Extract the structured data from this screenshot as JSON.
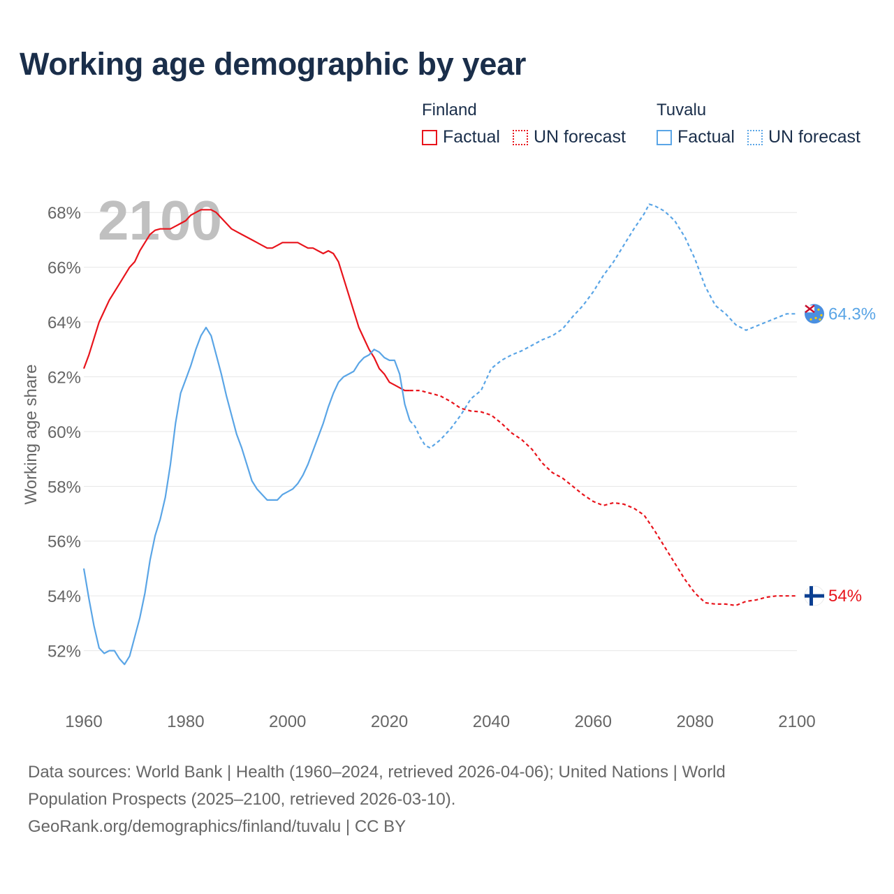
{
  "chart_data": {
    "type": "line",
    "title": "Working age demographic by year",
    "xlabel": "",
    "ylabel": "Working age share",
    "xlim": [
      1960,
      2100
    ],
    "ylim": [
      50,
      69
    ],
    "yticks": [
      52,
      54,
      56,
      58,
      60,
      62,
      64,
      66,
      68
    ],
    "ytick_labels": [
      "52%",
      "54%",
      "56%",
      "58%",
      "60%",
      "62%",
      "64%",
      "66%",
      "68%"
    ],
    "xticks": [
      1960,
      1980,
      2000,
      2020,
      2040,
      2060,
      2080,
      2100
    ],
    "xtick_labels": [
      "1960",
      "1980",
      "2000",
      "2020",
      "2040",
      "2060",
      "2080",
      "2100"
    ],
    "year_watermark": "2100",
    "grid": true,
    "legend": {
      "position": "top-right",
      "groups": [
        {
          "name": "Finland",
          "factual_label": "Factual",
          "forecast_label": "UN forecast",
          "color": "#e8141c"
        },
        {
          "name": "Tuvalu",
          "factual_label": "Factual",
          "forecast_label": "UN forecast",
          "color": "#5aa5e6"
        }
      ]
    },
    "series": [
      {
        "name": "Finland",
        "color": "#e8141c",
        "end_label": "54%",
        "flag": "finland-flag",
        "factual": [
          [
            1960,
            62.3
          ],
          [
            1961,
            62.8
          ],
          [
            1962,
            63.4
          ],
          [
            1963,
            64.0
          ],
          [
            1964,
            64.4
          ],
          [
            1965,
            64.8
          ],
          [
            1966,
            65.1
          ],
          [
            1967,
            65.4
          ],
          [
            1968,
            65.7
          ],
          [
            1969,
            66.0
          ],
          [
            1970,
            66.2
          ],
          [
            1971,
            66.6
          ],
          [
            1972,
            66.9
          ],
          [
            1973,
            67.2
          ],
          [
            1974,
            67.35
          ],
          [
            1975,
            67.4
          ],
          [
            1976,
            67.4
          ],
          [
            1977,
            67.4
          ],
          [
            1978,
            67.5
          ],
          [
            1979,
            67.6
          ],
          [
            1980,
            67.7
          ],
          [
            1981,
            67.9
          ],
          [
            1982,
            68.0
          ],
          [
            1983,
            68.1
          ],
          [
            1984,
            68.1
          ],
          [
            1985,
            68.1
          ],
          [
            1986,
            68.0
          ],
          [
            1987,
            67.8
          ],
          [
            1988,
            67.6
          ],
          [
            1989,
            67.4
          ],
          [
            1990,
            67.3
          ],
          [
            1991,
            67.2
          ],
          [
            1992,
            67.1
          ],
          [
            1993,
            67.0
          ],
          [
            1994,
            66.9
          ],
          [
            1995,
            66.8
          ],
          [
            1996,
            66.7
          ],
          [
            1997,
            66.7
          ],
          [
            1998,
            66.8
          ],
          [
            1999,
            66.9
          ],
          [
            2000,
            66.9
          ],
          [
            2001,
            66.9
          ],
          [
            2002,
            66.9
          ],
          [
            2003,
            66.8
          ],
          [
            2004,
            66.7
          ],
          [
            2005,
            66.7
          ],
          [
            2006,
            66.6
          ],
          [
            2007,
            66.5
          ],
          [
            2008,
            66.6
          ],
          [
            2009,
            66.5
          ],
          [
            2010,
            66.2
          ],
          [
            2011,
            65.6
          ],
          [
            2012,
            65.0
          ],
          [
            2013,
            64.4
          ],
          [
            2014,
            63.8
          ],
          [
            2015,
            63.4
          ],
          [
            2016,
            63.0
          ],
          [
            2017,
            62.7
          ],
          [
            2018,
            62.3
          ],
          [
            2019,
            62.1
          ],
          [
            2020,
            61.8
          ],
          [
            2021,
            61.7
          ],
          [
            2022,
            61.6
          ],
          [
            2023,
            61.5
          ],
          [
            2024,
            61.5
          ]
        ],
        "forecast": [
          [
            2024,
            61.5
          ],
          [
            2026,
            61.5
          ],
          [
            2028,
            61.4
          ],
          [
            2030,
            61.3
          ],
          [
            2032,
            61.1
          ],
          [
            2034,
            60.85
          ],
          [
            2036,
            60.75
          ],
          [
            2038,
            60.72
          ],
          [
            2040,
            60.6
          ],
          [
            2042,
            60.3
          ],
          [
            2044,
            59.95
          ],
          [
            2046,
            59.7
          ],
          [
            2048,
            59.35
          ],
          [
            2050,
            58.85
          ],
          [
            2052,
            58.5
          ],
          [
            2054,
            58.3
          ],
          [
            2056,
            58.0
          ],
          [
            2058,
            57.7
          ],
          [
            2060,
            57.45
          ],
          [
            2062,
            57.3
          ],
          [
            2064,
            57.4
          ],
          [
            2066,
            57.35
          ],
          [
            2068,
            57.2
          ],
          [
            2070,
            56.95
          ],
          [
            2072,
            56.4
          ],
          [
            2074,
            55.8
          ],
          [
            2076,
            55.2
          ],
          [
            2078,
            54.6
          ],
          [
            2080,
            54.1
          ],
          [
            2082,
            53.75
          ],
          [
            2084,
            53.7
          ],
          [
            2086,
            53.7
          ],
          [
            2088,
            53.65
          ],
          [
            2090,
            53.8
          ],
          [
            2092,
            53.85
          ],
          [
            2094,
            53.95
          ],
          [
            2096,
            54.0
          ],
          [
            2098,
            54.0
          ],
          [
            2100,
            54.0
          ]
        ]
      },
      {
        "name": "Tuvalu",
        "color": "#5aa5e6",
        "end_label": "64.3%",
        "flag": "tuvalu-flag",
        "factual": [
          [
            1960,
            55.0
          ],
          [
            1961,
            53.9
          ],
          [
            1962,
            52.9
          ],
          [
            1963,
            52.1
          ],
          [
            1964,
            51.9
          ],
          [
            1965,
            52.0
          ],
          [
            1966,
            52.0
          ],
          [
            1967,
            51.7
          ],
          [
            1968,
            51.5
          ],
          [
            1969,
            51.8
          ],
          [
            1970,
            52.5
          ],
          [
            1971,
            53.2
          ],
          [
            1972,
            54.1
          ],
          [
            1973,
            55.3
          ],
          [
            1974,
            56.2
          ],
          [
            1975,
            56.8
          ],
          [
            1976,
            57.6
          ],
          [
            1977,
            58.8
          ],
          [
            1978,
            60.3
          ],
          [
            1979,
            61.4
          ],
          [
            1980,
            61.9
          ],
          [
            1981,
            62.4
          ],
          [
            1982,
            63.0
          ],
          [
            1983,
            63.5
          ],
          [
            1984,
            63.8
          ],
          [
            1985,
            63.5
          ],
          [
            1986,
            62.8
          ],
          [
            1987,
            62.1
          ],
          [
            1988,
            61.3
          ],
          [
            1989,
            60.6
          ],
          [
            1990,
            59.9
          ],
          [
            1991,
            59.4
          ],
          [
            1992,
            58.8
          ],
          [
            1993,
            58.2
          ],
          [
            1994,
            57.9
          ],
          [
            1995,
            57.7
          ],
          [
            1996,
            57.5
          ],
          [
            1997,
            57.5
          ],
          [
            1998,
            57.5
          ],
          [
            1999,
            57.7
          ],
          [
            2000,
            57.8
          ],
          [
            2001,
            57.9
          ],
          [
            2002,
            58.1
          ],
          [
            2003,
            58.4
          ],
          [
            2004,
            58.8
          ],
          [
            2005,
            59.3
          ],
          [
            2006,
            59.8
          ],
          [
            2007,
            60.3
          ],
          [
            2008,
            60.9
          ],
          [
            2009,
            61.4
          ],
          [
            2010,
            61.8
          ],
          [
            2011,
            62.0
          ],
          [
            2012,
            62.1
          ],
          [
            2013,
            62.2
          ],
          [
            2014,
            62.5
          ],
          [
            2015,
            62.7
          ],
          [
            2016,
            62.8
          ],
          [
            2017,
            63.0
          ],
          [
            2018,
            62.9
          ],
          [
            2019,
            62.7
          ],
          [
            2020,
            62.6
          ],
          [
            2021,
            62.6
          ],
          [
            2022,
            62.1
          ],
          [
            2023,
            61.0
          ],
          [
            2024,
            60.4
          ]
        ],
        "forecast": [
          [
            2024,
            60.4
          ],
          [
            2025,
            60.2
          ],
          [
            2026,
            59.8
          ],
          [
            2027,
            59.5
          ],
          [
            2028,
            59.4
          ],
          [
            2030,
            59.7
          ],
          [
            2032,
            60.1
          ],
          [
            2034,
            60.6
          ],
          [
            2036,
            61.2
          ],
          [
            2038,
            61.5
          ],
          [
            2040,
            62.3
          ],
          [
            2042,
            62.6
          ],
          [
            2044,
            62.8
          ],
          [
            2046,
            62.95
          ],
          [
            2048,
            63.15
          ],
          [
            2050,
            63.35
          ],
          [
            2052,
            63.5
          ],
          [
            2054,
            63.75
          ],
          [
            2056,
            64.2
          ],
          [
            2058,
            64.6
          ],
          [
            2060,
            65.1
          ],
          [
            2062,
            65.7
          ],
          [
            2064,
            66.2
          ],
          [
            2066,
            66.8
          ],
          [
            2068,
            67.4
          ],
          [
            2070,
            67.95
          ],
          [
            2071,
            68.3
          ],
          [
            2072,
            68.25
          ],
          [
            2074,
            68.05
          ],
          [
            2076,
            67.7
          ],
          [
            2078,
            67.1
          ],
          [
            2080,
            66.3
          ],
          [
            2082,
            65.3
          ],
          [
            2084,
            64.6
          ],
          [
            2086,
            64.3
          ],
          [
            2088,
            63.9
          ],
          [
            2090,
            63.7
          ],
          [
            2092,
            63.85
          ],
          [
            2094,
            64.0
          ],
          [
            2096,
            64.15
          ],
          [
            2098,
            64.3
          ],
          [
            2100,
            64.3
          ]
        ]
      }
    ]
  },
  "footer": {
    "line1": "Data sources: World Bank | Health (1960–2024, retrieved 2026-04-06); United Nations | World",
    "line2": "Population Prospects (2025–2100, retrieved 2026-03-10).",
    "line3": "GeoRank.org/demographics/finland/tuvalu | CC BY"
  }
}
